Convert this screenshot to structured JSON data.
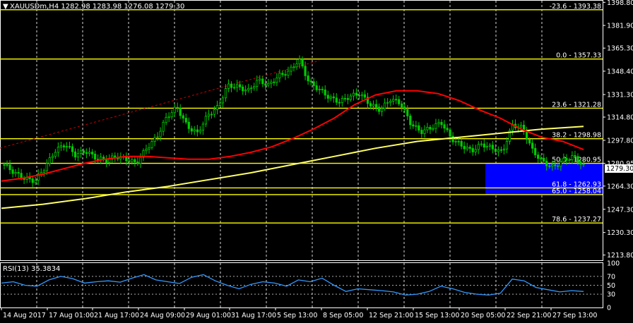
{
  "header": {
    "symbol_info": "XAUUSDm,H4  1282.98 1283.98 1276.08 1279.30"
  },
  "rsi_panel": {
    "label": "RSI(13) 35.3834",
    "levels": [
      "100",
      "70",
      "50",
      "30",
      "0"
    ]
  },
  "colors": {
    "background": "#000000",
    "candle": "#00cc00",
    "fib_line": "#ffff00",
    "ma_red": "#ff0000",
    "ma_yellow": "#ffff66",
    "rsi_line": "#3399ff",
    "zone": "#0000ff",
    "grid": "#ffffff"
  },
  "chart_data": {
    "type": "candlestick",
    "symbol": "XAUUSDm",
    "timeframe": "H4",
    "ylim": [
      1210,
      1400
    ],
    "y_ticks": [
      "1398.80",
      "1381.90",
      "1365.30",
      "1348.40",
      "1331.30",
      "1314.80",
      "1297.80",
      "1280.95",
      "1264.30",
      "1247.30",
      "1230.30",
      "1213.80"
    ],
    "current_price": "1279.30",
    "x_tick_labels": [
      "14 Aug 2017",
      "17 Aug 01:00",
      "21 Aug 17:00",
      "24 Aug 09:00",
      "29 Aug 01:00",
      "31 Aug 17:00",
      "5 Sep 13:00",
      "8 Sep 05:00",
      "12 Sep 21:00",
      "15 Sep 13:00",
      "20 Sep 05:00",
      "22 Sep 21:00",
      "27 Sep 13:00"
    ],
    "fib_levels": [
      {
        "label": "-23.6 - 1393.38",
        "price": 1393.38
      },
      {
        "label": "0.0 - 1357.33",
        "price": 1357.33
      },
      {
        "label": "23.6 - 1321.28",
        "price": 1321.28
      },
      {
        "label": "38.2 - 1298.98",
        "price": 1298.98
      },
      {
        "label": "50.0 - 1280.95",
        "price": 1280.95
      },
      {
        "label": "61.8 - 1262.93",
        "price": 1262.93
      },
      {
        "label": "65.0 - 1258.04",
        "price": 1258.04
      },
      {
        "label": "78.6 - 1237.27",
        "price": 1237.27
      }
    ],
    "zone": {
      "from_price": 1258.04,
      "to_price": 1280.95
    },
    "price_path": [
      1280,
      1274,
      1270,
      1268,
      1278,
      1290,
      1295,
      1287,
      1290,
      1285,
      1283,
      1286,
      1284,
      1281,
      1292,
      1300,
      1315,
      1322,
      1308,
      1303,
      1316,
      1322,
      1338,
      1337,
      1334,
      1342,
      1338,
      1345,
      1348,
      1357,
      1340,
      1335,
      1329,
      1326,
      1330,
      1332,
      1324,
      1320,
      1328,
      1325,
      1310,
      1304,
      1307,
      1311,
      1299,
      1294,
      1290,
      1295,
      1292,
      1289,
      1309,
      1307,
      1290,
      1282,
      1278,
      1283,
      1286,
      1279
    ],
    "ma_red_path": [
      1268,
      1270,
      1273,
      1277,
      1281,
      1284,
      1286,
      1286,
      1285,
      1284,
      1284,
      1286,
      1289,
      1293,
      1299,
      1306,
      1314,
      1324,
      1331,
      1334,
      1334,
      1332,
      1327,
      1320,
      1314,
      1306,
      1300,
      1297,
      1291
    ],
    "ma_yellow_path": [
      1248,
      1251,
      1255,
      1260,
      1264,
      1269,
      1274,
      1280,
      1286,
      1292,
      1297,
      1300,
      1303,
      1306,
      1308
    ],
    "rsi_path": [
      55,
      58,
      50,
      48,
      62,
      70,
      65,
      55,
      58,
      60,
      57,
      66,
      74,
      62,
      58,
      54,
      68,
      74,
      60,
      50,
      42,
      52,
      58,
      55,
      48,
      62,
      58,
      66,
      50,
      36,
      42,
      40,
      38,
      35,
      28,
      30,
      36,
      48,
      42,
      34,
      30,
      28,
      32,
      64,
      60,
      45,
      40,
      35,
      38,
      36
    ]
  }
}
